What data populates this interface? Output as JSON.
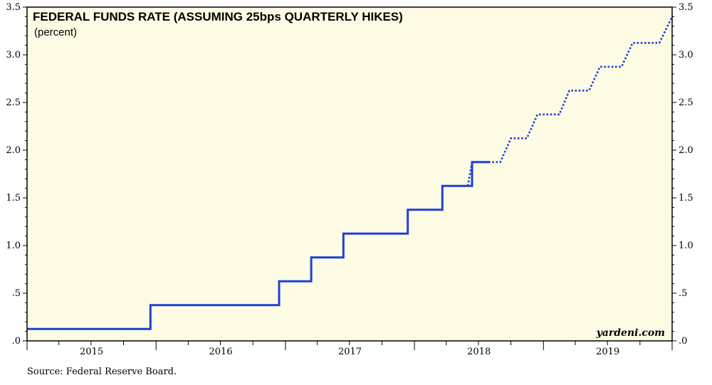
{
  "chart_data": {
    "type": "line",
    "title": "FEDERAL FUNDS RATE (ASSUMING 25bps QUARTERLY HIKES)",
    "subtitle": "(percent)",
    "watermark": "yardeni.com",
    "source": "Source: Federal Reserve Board.",
    "x_range": [
      "2015-01-01",
      "2019-12-31"
    ],
    "ylim": [
      0,
      3.5
    ],
    "y_ticks": [
      0,
      0.5,
      1.0,
      1.5,
      2.0,
      2.5,
      3.0,
      3.5
    ],
    "y_tick_labels": [
      ".0",
      ".5",
      "1.0",
      "1.5",
      "2.0",
      "2.5",
      "3.0",
      "3.5"
    ],
    "year_labels": [
      "2015",
      "2016",
      "2017",
      "2018",
      "2019"
    ],
    "colors": {
      "line": "#1f3fd6",
      "plot_background": "#fefbe4",
      "frame": "#000000"
    },
    "series": [
      {
        "name": "",
        "style": "solid",
        "points": [
          [
            "2015-01-01",
            0.125
          ],
          [
            "2015-12-16",
            0.125
          ],
          [
            "2015-12-16",
            0.375
          ],
          [
            "2016-12-14",
            0.375
          ],
          [
            "2016-12-14",
            0.625
          ],
          [
            "2017-03-15",
            0.625
          ],
          [
            "2017-03-15",
            0.875
          ],
          [
            "2017-06-14",
            0.875
          ],
          [
            "2017-06-14",
            1.125
          ],
          [
            "2017-12-13",
            1.125
          ],
          [
            "2017-12-13",
            1.375
          ],
          [
            "2018-03-21",
            1.375
          ],
          [
            "2018-03-21",
            1.625
          ],
          [
            "2018-06-13",
            1.625
          ],
          [
            "2018-06-13",
            1.875
          ],
          [
            "2018-08-01",
            1.875
          ]
        ]
      },
      {
        "name": "",
        "style": "dotted",
        "points": [
          [
            "2018-06-01",
            1.625
          ],
          [
            "2018-06-13",
            1.875
          ],
          [
            "2018-09-01",
            1.875
          ],
          [
            "2018-10-01",
            2.125
          ],
          [
            "2018-11-15",
            2.125
          ],
          [
            "2018-12-15",
            2.375
          ],
          [
            "2019-02-15",
            2.375
          ],
          [
            "2019-03-15",
            2.625
          ],
          [
            "2019-05-10",
            2.625
          ],
          [
            "2019-06-10",
            2.875
          ],
          [
            "2019-08-10",
            2.875
          ],
          [
            "2019-09-10",
            3.125
          ],
          [
            "2019-11-25",
            3.125
          ],
          [
            "2019-12-31",
            3.4
          ]
        ]
      }
    ]
  }
}
